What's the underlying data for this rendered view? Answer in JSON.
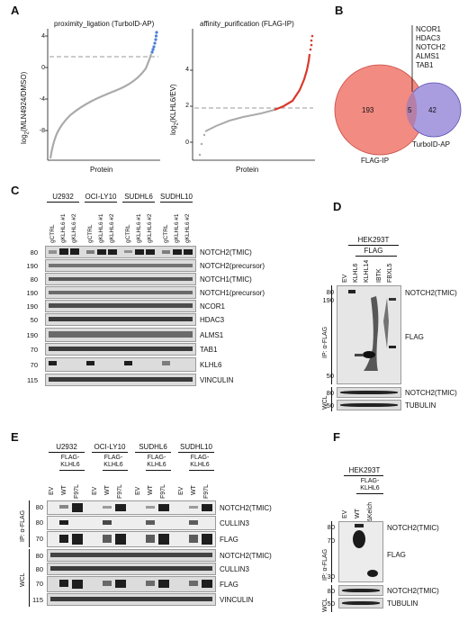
{
  "panelA": {
    "letter": "A",
    "left_title": "proximity_ligation (TurboID-AP)",
    "left_ylabel_main": "log",
    "left_ylabel_sub": "2",
    "left_ylabel_rest": "(MLN4924/DMSO)",
    "left_xlabel": "Protein",
    "left_yticks": [
      "4",
      "0",
      "-4",
      "-8"
    ],
    "right_title": "affinity_purification (FLAG-IP)",
    "right_ylabel_main": "log",
    "right_ylabel_sub": "2",
    "right_ylabel_rest": "(KLHL6/EV)",
    "right_xlabel": "Protein",
    "right_yticks": [
      "4",
      "2",
      "0"
    ]
  },
  "panelB": {
    "letter": "B",
    "left_count": "193",
    "overlap_count": "5",
    "right_count": "42",
    "left_label": "FLAG-IP",
    "right_label": "TurboID-AP",
    "overlap_genes": [
      "NCOR1",
      "HDAC3",
      "NOTCH2",
      "ALMS1",
      "TAB1"
    ],
    "colors": {
      "left": "#f28b82",
      "right": "#a99de0"
    }
  },
  "panelC": {
    "letter": "C",
    "cell_lines": [
      "U2932",
      "OCI-LY10",
      "SUDHL6",
      "SUDHL10"
    ],
    "lanes": [
      "gCTRL",
      "gKLHL6 #1",
      "gKLHL6 #2"
    ],
    "rows": [
      {
        "mw": "80",
        "label": "NOTCH2(TMIC)"
      },
      {
        "mw": "190",
        "label": "NOTCH2(precursor)"
      },
      {
        "mw": "80",
        "label": "NOTCH1(TMIC)"
      },
      {
        "mw": "190",
        "label": "NOTCH1(precursor)"
      },
      {
        "mw": "190",
        "label": "NCOR1"
      },
      {
        "mw": "50",
        "label": "HDAC3"
      },
      {
        "mw": "190",
        "label": "ALMS1"
      },
      {
        "mw": "70",
        "label": "TAB1"
      },
      {
        "mw": "70",
        "label": "KLHL6"
      },
      {
        "mw": "115",
        "label": "VINCULIN"
      }
    ]
  },
  "panelD": {
    "letter": "D",
    "cell": "HEK293T",
    "tag": "FLAG",
    "lanes": [
      "EV",
      "KLHL6",
      "KLHL14",
      "IBTK",
      "FBXL5"
    ],
    "ip_label": "IP: α-FLAG",
    "wcl_label": "WCL",
    "ip_mw": [
      "80",
      "190",
      "50"
    ],
    "ip_labels": [
      "NOTCH2(TMIC)",
      "FLAG"
    ],
    "wcl_rows": [
      {
        "mw": "80",
        "label": "NOTCH2(TMIC)"
      },
      {
        "mw": "50",
        "label": "TUBULIN"
      }
    ]
  },
  "panelE": {
    "letter": "E",
    "cell_lines": [
      "U2932",
      "OCI-LY10",
      "SUDHL6",
      "SUDHL10"
    ],
    "construct": "FLAG-KLHL6",
    "lanes": [
      "EV",
      "WT",
      "F97L"
    ],
    "ip_label": "IP: α-FLAG",
    "wcl_label": "WCL",
    "rows": [
      {
        "mw": "80",
        "label": "NOTCH2(TMIC)"
      },
      {
        "mw": "80",
        "label": "CULLIN3"
      },
      {
        "mw": "70",
        "label": "FLAG"
      },
      {
        "mw": "80",
        "label": "NOTCH2(TMIC)"
      },
      {
        "mw": "80",
        "label": "CULLIN3"
      },
      {
        "mw": "70",
        "label": "FLAG"
      },
      {
        "mw": "115",
        "label": "VINCULIN"
      }
    ]
  },
  "panelF": {
    "letter": "F",
    "cell": "HEK293T",
    "construct": "FLAG-KLHL6",
    "lanes": [
      "EV",
      "WT",
      "ΔKelch"
    ],
    "ip_label": "IP: α-FLAG",
    "wcl_label": "WCL",
    "ip_mw": [
      "80",
      "70",
      "30"
    ],
    "ip_labels": [
      "NOTCH2(TMIC)",
      "FLAG"
    ],
    "wcl_rows": [
      {
        "mw": "80",
        "label": "NOTCH2(TMIC)"
      },
      {
        "mw": "50",
        "label": "TUBULIN"
      }
    ]
  }
}
